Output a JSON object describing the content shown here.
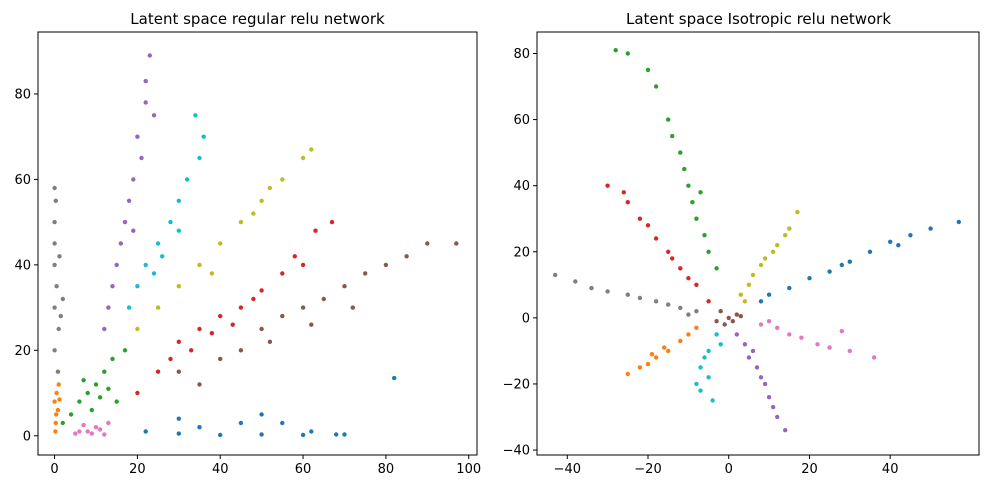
{
  "chart_data": [
    {
      "type": "scatter",
      "title": "Latent space regular relu network",
      "xlabel": "",
      "ylabel": "",
      "xlim": [
        -4,
        102
      ],
      "ylim": [
        -4.5,
        94.5
      ],
      "xticks": [
        0,
        20,
        40,
        60,
        80,
        100
      ],
      "yticks": [
        0,
        20,
        40,
        60,
        80
      ],
      "grid": false,
      "legend": "none",
      "series": [
        {
          "color": "#1f77b4",
          "points": [
            [
              22,
              1
            ],
            [
              30,
              0.5
            ],
            [
              40,
              0.2
            ],
            [
              50,
              0.3
            ],
            [
              60,
              0.2
            ],
            [
              68,
              0.3
            ],
            [
              70,
              0.3
            ],
            [
              35,
              2
            ],
            [
              45,
              3
            ],
            [
              55,
              3
            ],
            [
              62,
              1
            ],
            [
              50,
              5
            ],
            [
              30,
              4
            ],
            [
              82,
              13.5
            ]
          ]
        },
        {
          "color": "#ff7f0e",
          "points": [
            [
              0,
              8
            ],
            [
              0.5,
              10
            ],
            [
              0.8,
              6
            ],
            [
              0.3,
              3
            ],
            [
              1,
              12
            ],
            [
              0.2,
              1
            ],
            [
              1.2,
              8.5
            ],
            [
              0.4,
              5
            ]
          ]
        },
        {
          "color": "#2ca02c",
          "points": [
            [
              8,
              10
            ],
            [
              10,
              12
            ],
            [
              6,
              8
            ],
            [
              12,
              15
            ],
            [
              4,
              5
            ],
            [
              14,
              18
            ],
            [
              9,
              6
            ],
            [
              11,
              9
            ],
            [
              7,
              13
            ],
            [
              15,
              8
            ],
            [
              2,
              3
            ],
            [
              13,
              11
            ],
            [
              17,
              20
            ]
          ]
        },
        {
          "color": "#d62728",
          "points": [
            [
              25,
              15
            ],
            [
              35,
              25
            ],
            [
              45,
              30
            ],
            [
              55,
              38
            ],
            [
              30,
              22
            ],
            [
              40,
              28
            ],
            [
              50,
              34
            ],
            [
              60,
              40
            ],
            [
              63,
              48
            ],
            [
              67,
              50
            ],
            [
              20,
              10
            ],
            [
              38,
              24
            ],
            [
              48,
              32
            ],
            [
              58,
              42
            ],
            [
              43,
              26
            ],
            [
              33,
              20
            ],
            [
              28,
              18
            ]
          ]
        },
        {
          "color": "#9467bd",
          "points": [
            [
              15,
              40
            ],
            [
              17,
              50
            ],
            [
              19,
              60
            ],
            [
              20,
              70
            ],
            [
              22,
              78
            ],
            [
              14,
              35
            ],
            [
              16,
              45
            ],
            [
              18,
              55
            ],
            [
              21,
              65
            ],
            [
              22,
              83
            ],
            [
              23,
              89
            ],
            [
              13,
              30
            ],
            [
              12,
              25
            ],
            [
              24,
              75
            ],
            [
              19,
              48
            ]
          ]
        },
        {
          "color": "#8c564b",
          "points": [
            [
              40,
              18
            ],
            [
              50,
              25
            ],
            [
              60,
              30
            ],
            [
              70,
              35
            ],
            [
              80,
              40
            ],
            [
              90,
              45
            ],
            [
              97,
              45
            ],
            [
              30,
              15
            ],
            [
              45,
              20
            ],
            [
              55,
              28
            ],
            [
              65,
              32
            ],
            [
              75,
              38
            ],
            [
              85,
              42
            ],
            [
              52,
              22
            ],
            [
              62,
              26
            ],
            [
              35,
              12
            ],
            [
              72,
              30
            ]
          ]
        },
        {
          "color": "#e377c2",
          "points": [
            [
              5,
              0.5
            ],
            [
              8,
              1
            ],
            [
              10,
              2
            ],
            [
              12,
              0.3
            ],
            [
              7,
              2.5
            ],
            [
              9,
              0.5
            ],
            [
              11,
              1.5
            ],
            [
              13,
              3
            ],
            [
              6,
              1
            ]
          ]
        },
        {
          "color": "#7f7f7f",
          "points": [
            [
              0,
              30
            ],
            [
              0,
              40
            ],
            [
              0,
              50
            ],
            [
              0,
              20
            ],
            [
              0,
              58
            ],
            [
              0.5,
              35
            ],
            [
              1,
              25
            ],
            [
              0,
              45
            ],
            [
              1.5,
              28
            ],
            [
              2,
              32
            ],
            [
              0.3,
              55
            ],
            [
              0.8,
              15
            ],
            [
              1.2,
              42
            ]
          ]
        },
        {
          "color": "#bcbd22",
          "points": [
            [
              30,
              35
            ],
            [
              40,
              45
            ],
            [
              50,
              55
            ],
            [
              35,
              40
            ],
            [
              45,
              50
            ],
            [
              55,
              60
            ],
            [
              25,
              30
            ],
            [
              60,
              65
            ],
            [
              62,
              67
            ],
            [
              20,
              25
            ],
            [
              48,
              52
            ],
            [
              38,
              38
            ],
            [
              52,
              58
            ]
          ]
        },
        {
          "color": "#17becf",
          "points": [
            [
              20,
              35
            ],
            [
              25,
              45
            ],
            [
              30,
              55
            ],
            [
              35,
              65
            ],
            [
              22,
              40
            ],
            [
              28,
              50
            ],
            [
              32,
              60
            ],
            [
              34,
              75
            ],
            [
              18,
              30
            ],
            [
              26,
              42
            ],
            [
              36,
              70
            ],
            [
              30,
              48
            ],
            [
              24,
              38
            ]
          ]
        }
      ]
    },
    {
      "type": "scatter",
      "title": "Latent space Isotropic relu network",
      "xlabel": "",
      "ylabel": "",
      "xlim": [
        -47.5,
        62
      ],
      "ylim": [
        -41.5,
        86.5
      ],
      "xticks": [
        -40,
        -20,
        0,
        20,
        40
      ],
      "yticks": [
        -40,
        -20,
        0,
        20,
        40,
        60,
        80
      ],
      "grid": false,
      "legend": "none",
      "series": [
        {
          "color": "#1f77b4",
          "points": [
            [
              10,
              7
            ],
            [
              20,
              12
            ],
            [
              30,
              17
            ],
            [
              40,
              23
            ],
            [
              50,
              27
            ],
            [
              57,
              29
            ],
            [
              15,
              9
            ],
            [
              25,
              14
            ],
            [
              35,
              20
            ],
            [
              45,
              25
            ],
            [
              8,
              5
            ],
            [
              28,
              16
            ],
            [
              42,
              22
            ]
          ]
        },
        {
          "color": "#ff7f0e",
          "points": [
            [
              -10,
              -5
            ],
            [
              -15,
              -10
            ],
            [
              -20,
              -14
            ],
            [
              -25,
              -17
            ],
            [
              -12,
              -7
            ],
            [
              -18,
              -12
            ],
            [
              -22,
              -15
            ],
            [
              -8,
              -3
            ],
            [
              -16,
              -9
            ],
            [
              -19,
              -11
            ]
          ]
        },
        {
          "color": "#2ca02c",
          "points": [
            [
              -5,
              20
            ],
            [
              -8,
              30
            ],
            [
              -10,
              40
            ],
            [
              -12,
              50
            ],
            [
              -15,
              60
            ],
            [
              -18,
              70
            ],
            [
              -25,
              80
            ],
            [
              -20,
              75
            ],
            [
              -6,
              25
            ],
            [
              -9,
              35
            ],
            [
              -11,
              45
            ],
            [
              -3,
              15
            ],
            [
              -14,
              55
            ],
            [
              -28,
              81
            ],
            [
              -7,
              38
            ]
          ]
        },
        {
          "color": "#d62728",
          "points": [
            [
              -5,
              5
            ],
            [
              -10,
              12
            ],
            [
              -15,
              20
            ],
            [
              -20,
              28
            ],
            [
              -25,
              35
            ],
            [
              -30,
              40
            ],
            [
              -8,
              10
            ],
            [
              -12,
              15
            ],
            [
              -18,
              24
            ],
            [
              -22,
              30
            ],
            [
              -26,
              38
            ],
            [
              -14,
              18
            ]
          ]
        },
        {
          "color": "#9467bd",
          "points": [
            [
              2,
              -5
            ],
            [
              5,
              -12
            ],
            [
              8,
              -18
            ],
            [
              10,
              -24
            ],
            [
              12,
              -30
            ],
            [
              14,
              -34
            ],
            [
              4,
              -8
            ],
            [
              7,
              -15
            ],
            [
              9,
              -20
            ],
            [
              11,
              -27
            ],
            [
              6,
              -10
            ]
          ]
        },
        {
          "color": "#8c564b",
          "points": [
            [
              0,
              0
            ],
            [
              2,
              1
            ],
            [
              -2,
              2
            ],
            [
              1,
              -1
            ],
            [
              -1,
              -2
            ],
            [
              3,
              0.5
            ],
            [
              -3,
              -1
            ]
          ]
        },
        {
          "color": "#e377c2",
          "points": [
            [
              8,
              -2
            ],
            [
              15,
              -5
            ],
            [
              22,
              -8
            ],
            [
              30,
              -10
            ],
            [
              36,
              -12
            ],
            [
              12,
              -3
            ],
            [
              18,
              -6
            ],
            [
              25,
              -9
            ],
            [
              10,
              -1
            ],
            [
              28,
              -4
            ]
          ]
        },
        {
          "color": "#7f7f7f",
          "points": [
            [
              -8,
              2
            ],
            [
              -15,
              4
            ],
            [
              -22,
              6
            ],
            [
              -30,
              8
            ],
            [
              -38,
              11
            ],
            [
              -43,
              13
            ],
            [
              -12,
              3
            ],
            [
              -18,
              5
            ],
            [
              -25,
              7
            ],
            [
              -34,
              9
            ],
            [
              -10,
              1
            ]
          ]
        },
        {
          "color": "#bcbd22",
          "points": [
            [
              3,
              7
            ],
            [
              6,
              13
            ],
            [
              9,
              18
            ],
            [
              12,
              22
            ],
            [
              15,
              27
            ],
            [
              17,
              32
            ],
            [
              5,
              10
            ],
            [
              8,
              16
            ],
            [
              11,
              20
            ],
            [
              14,
              25
            ],
            [
              4,
              5
            ]
          ]
        },
        {
          "color": "#17becf",
          "points": [
            [
              -3,
              -5
            ],
            [
              -5,
              -10
            ],
            [
              -7,
              -15
            ],
            [
              -8,
              -20
            ],
            [
              -4,
              -25
            ],
            [
              -6,
              -12
            ],
            [
              -2,
              -8
            ],
            [
              -7,
              -22
            ],
            [
              -5,
              -18
            ]
          ]
        }
      ]
    }
  ]
}
